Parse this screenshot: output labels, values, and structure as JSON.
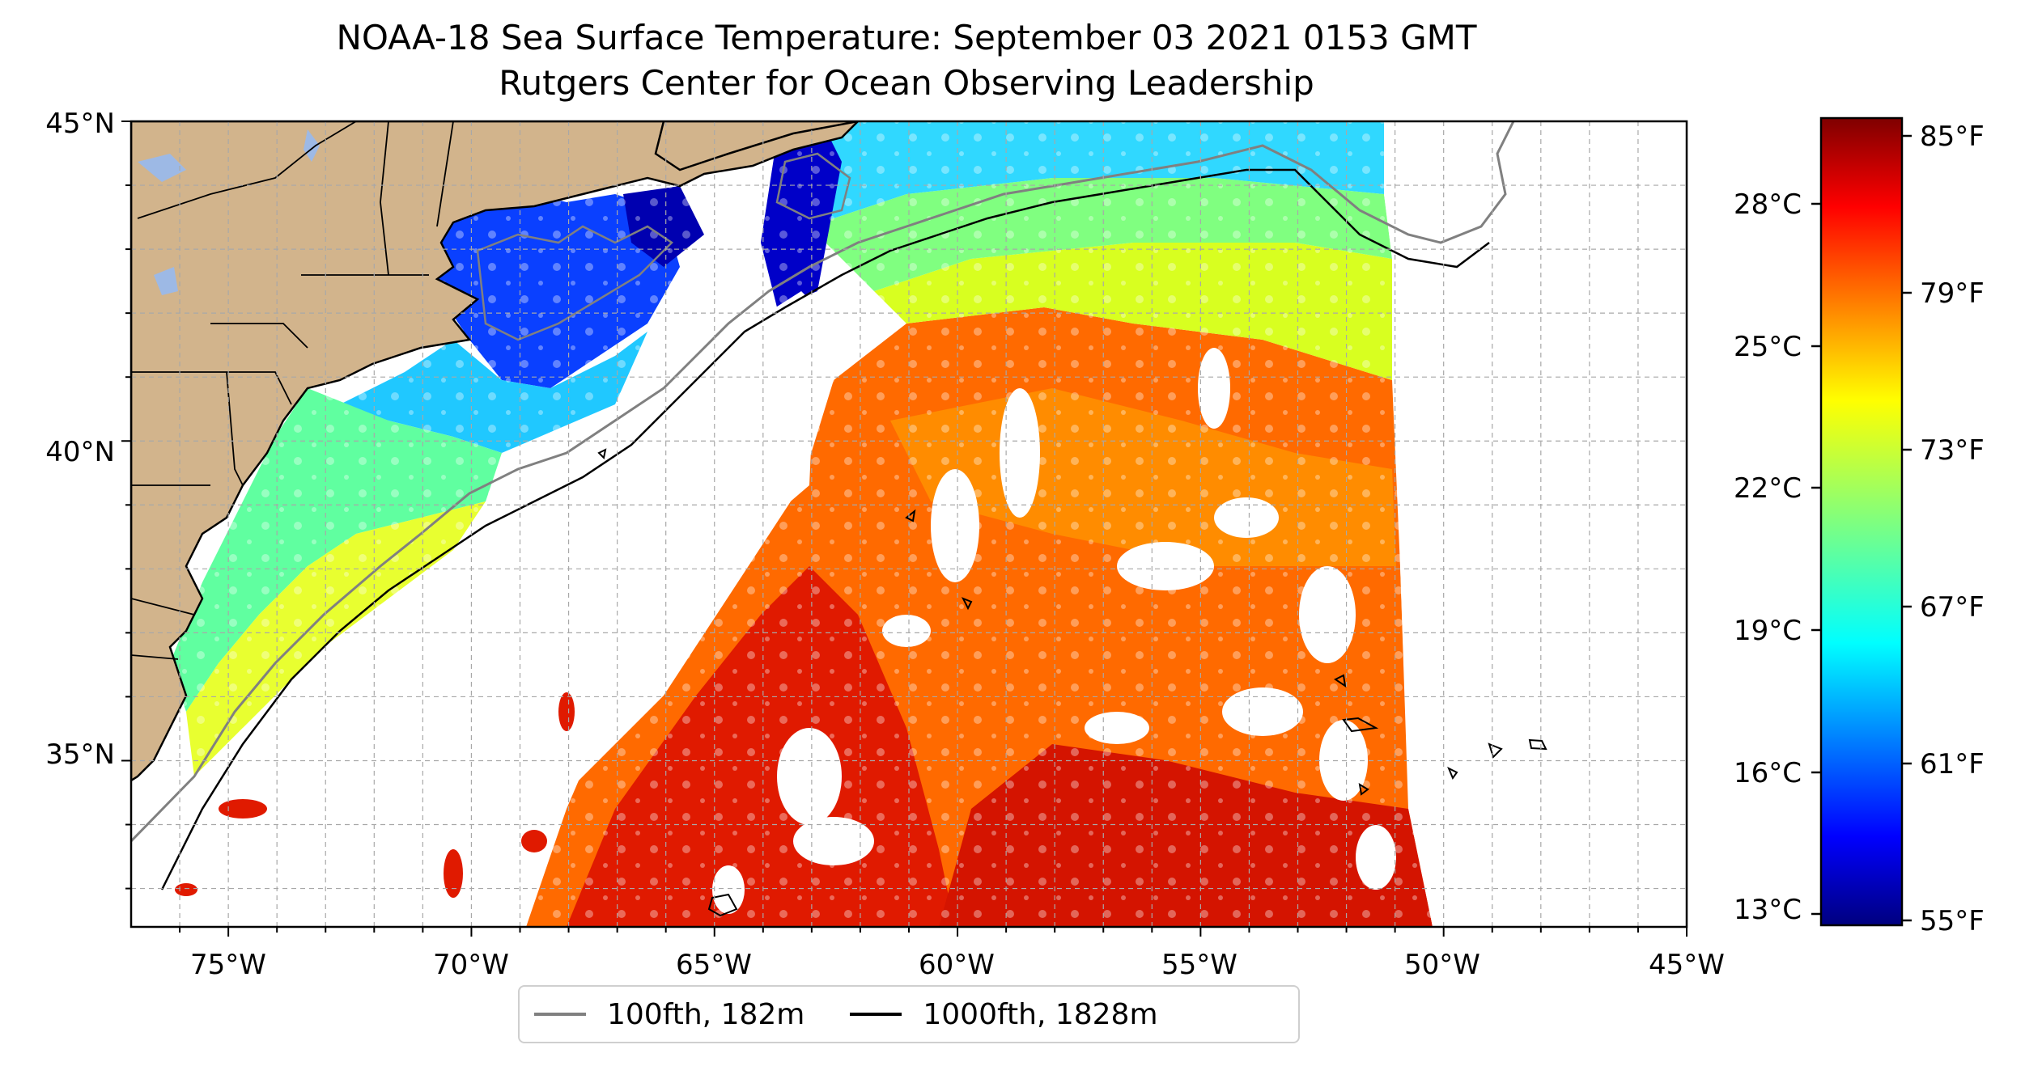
{
  "title": {
    "line1": "NOAA-18 Sea Surface Temperature: September 03 2021 0153 GMT",
    "line2": "Rutgers Center for Ocean Observing Leadership"
  },
  "map": {
    "lat_range": [
      32.4,
      45
    ],
    "lon_range": [
      -77,
      -45
    ],
    "lat_labels": [
      "45°N",
      "40°N",
      "35°N"
    ],
    "lon_labels": [
      "75°W",
      "70°W",
      "65°W",
      "60°W",
      "55°W",
      "50°W",
      "45°W"
    ],
    "gridlines": "dashed",
    "land_color": "#d2b48c",
    "lake_color": "#9db9e5",
    "missing_data_color": "#ffffff"
  },
  "legend": {
    "position": "bottom-center",
    "items": [
      {
        "label": "100fth, 182m",
        "color": "#808080"
      },
      {
        "label": "1000fth, 1828m",
        "color": "#000000"
      }
    ]
  },
  "colorbar": {
    "colormap": "jet",
    "celsius_ticks": [
      "28°C",
      "25°C",
      "22°C",
      "19°C",
      "16°C",
      "13°C"
    ],
    "fahrenheit_ticks": [
      "85°F",
      "79°F",
      "73°F",
      "67°F",
      "61°F",
      "55°F"
    ]
  }
}
